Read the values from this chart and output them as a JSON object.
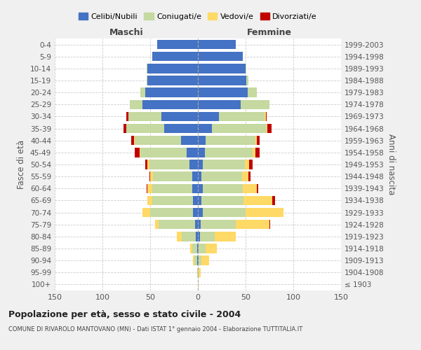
{
  "age_groups": [
    "100+",
    "95-99",
    "90-94",
    "85-89",
    "80-84",
    "75-79",
    "70-74",
    "65-69",
    "60-64",
    "55-59",
    "50-54",
    "45-49",
    "40-44",
    "35-39",
    "30-34",
    "25-29",
    "20-24",
    "15-19",
    "10-14",
    "5-9",
    "0-4"
  ],
  "birth_years": [
    "≤ 1903",
    "1904-1908",
    "1909-1913",
    "1914-1918",
    "1919-1923",
    "1924-1928",
    "1929-1933",
    "1934-1938",
    "1939-1943",
    "1944-1948",
    "1949-1953",
    "1954-1958",
    "1959-1963",
    "1964-1968",
    "1969-1973",
    "1974-1978",
    "1979-1983",
    "1984-1988",
    "1989-1993",
    "1994-1998",
    "1999-2003"
  ],
  "males": {
    "celibi": [
      0,
      0,
      1,
      1,
      2,
      3,
      5,
      5,
      6,
      6,
      9,
      12,
      18,
      35,
      38,
      58,
      55,
      53,
      53,
      48,
      43
    ],
    "coniugati": [
      0,
      1,
      3,
      5,
      15,
      38,
      45,
      43,
      42,
      41,
      42,
      48,
      48,
      40,
      35,
      13,
      5,
      1,
      1,
      0,
      0
    ],
    "vedovi": [
      0,
      0,
      1,
      2,
      5,
      4,
      8,
      5,
      5,
      3,
      2,
      1,
      1,
      0,
      0,
      0,
      0,
      0,
      0,
      0,
      0
    ],
    "divorziati": [
      0,
      0,
      0,
      0,
      0,
      0,
      0,
      0,
      1,
      1,
      2,
      5,
      3,
      3,
      2,
      0,
      0,
      0,
      0,
      0,
      0
    ]
  },
  "females": {
    "nubili": [
      0,
      0,
      1,
      1,
      2,
      3,
      5,
      4,
      5,
      4,
      5,
      7,
      8,
      15,
      22,
      45,
      52,
      51,
      50,
      47,
      40
    ],
    "coniugate": [
      0,
      1,
      3,
      7,
      16,
      37,
      45,
      44,
      42,
      42,
      44,
      50,
      52,
      57,
      48,
      30,
      10,
      2,
      1,
      0,
      0
    ],
    "vedove": [
      1,
      2,
      8,
      12,
      22,
      35,
      40,
      30,
      15,
      7,
      5,
      3,
      2,
      1,
      1,
      0,
      0,
      0,
      0,
      0,
      0
    ],
    "divorziate": [
      0,
      0,
      0,
      0,
      0,
      1,
      0,
      3,
      1,
      2,
      3,
      5,
      3,
      4,
      1,
      0,
      0,
      0,
      0,
      0,
      0
    ]
  },
  "colors": {
    "celibi": "#4472C4",
    "coniugati": "#C5D9A0",
    "vedovi": "#FFD966",
    "divorziati": "#C00000"
  },
  "title": "Popolazione per età, sesso e stato civile - 2004",
  "subtitle": "COMUNE DI RIVAROLO MANTOVANO (MN) - Dati ISTAT 1° gennaio 2004 - Elaborazione TUTTITALIA.IT",
  "xlabel_left": "Maschi",
  "xlabel_right": "Femmine",
  "ylabel_left": "Fasce di età",
  "ylabel_right": "Anni di nascita",
  "xlim": 150,
  "legend_labels": [
    "Celibi/Nubili",
    "Coniugati/e",
    "Vedovi/e",
    "Divorziati/e"
  ],
  "bg_color": "#f0f0f0",
  "plot_bg_color": "#ffffff"
}
